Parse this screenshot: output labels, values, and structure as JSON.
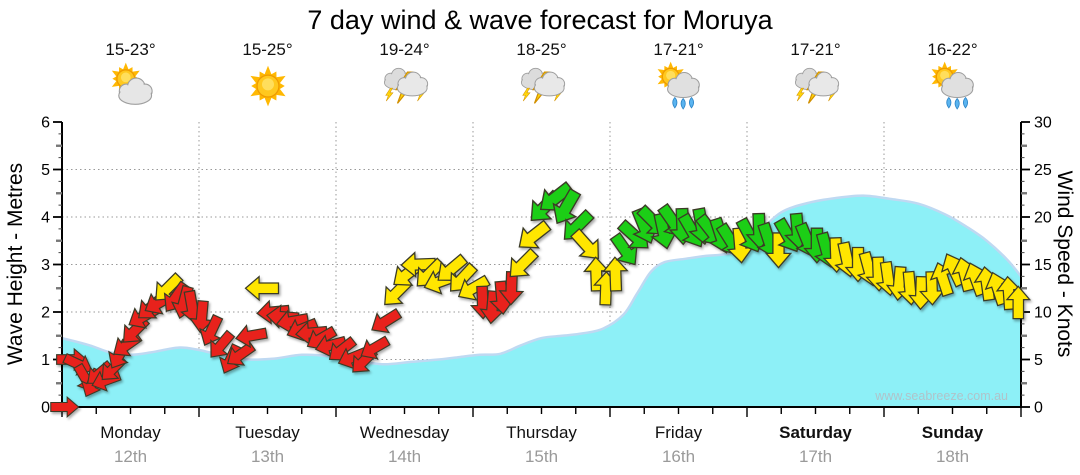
{
  "title": "7 day wind & wave forecast for Moruya",
  "watermark": "www.seabreeze.com.au",
  "forecast": [
    {
      "temp": "15-23°",
      "icon": "sun-cloud"
    },
    {
      "temp": "15-25°",
      "icon": "sun"
    },
    {
      "temp": "19-24°",
      "icon": "storm"
    },
    {
      "temp": "18-25°",
      "icon": "storm"
    },
    {
      "temp": "17-21°",
      "icon": "sun-shower"
    },
    {
      "temp": "17-21°",
      "icon": "storm"
    },
    {
      "temp": "16-22°",
      "icon": "sun-shower"
    }
  ],
  "chart_data": {
    "type": "area",
    "title": "7 day wind & wave forecast for Moruya",
    "grid": true,
    "left_axis": {
      "label": "Wave Height - Metres",
      "min": 0,
      "max": 6,
      "ticks": [
        0,
        1,
        2,
        3,
        4,
        5,
        6
      ]
    },
    "right_axis": {
      "label": "Wind Speed - Knots",
      "min": 0,
      "max": 30,
      "ticks": [
        0,
        5,
        10,
        15,
        20,
        25,
        30
      ]
    },
    "x_axis": {
      "days": [
        {
          "name": "Monday",
          "date": "12th",
          "bold": false
        },
        {
          "name": "Tuesday",
          "date": "13th",
          "bold": false
        },
        {
          "name": "Wednesday",
          "date": "14th",
          "bold": false
        },
        {
          "name": "Thursday",
          "date": "15th",
          "bold": false
        },
        {
          "name": "Friday",
          "date": "16th",
          "bold": false
        },
        {
          "name": "Saturday",
          "date": "17th",
          "bold": true
        },
        {
          "name": "Sunday",
          "date": "18th",
          "bold": true
        }
      ],
      "minor_tick_hours": 6
    },
    "colors": {
      "wave_fill": "#8DF0F7",
      "wave_edge": "#BFD9F2",
      "r": "#E8221A",
      "y": "#FFE600",
      "g": "#1FCE14",
      "arrow_outline": "#3A3A28",
      "grid": "#999999",
      "date_gray": "#9a9a9a",
      "watermark": "#AFC3CA"
    },
    "wave_height_m": {
      "series_name": "Wave Height (metres)",
      "points": [
        [
          0,
          1.45
        ],
        [
          0.2,
          1.3
        ],
        [
          0.35,
          1.15
        ],
        [
          0.5,
          1.1
        ],
        [
          0.65,
          1.15
        ],
        [
          0.85,
          1.25
        ],
        [
          1.0,
          1.2
        ],
        [
          1.15,
          1.1
        ],
        [
          1.35,
          1.0
        ],
        [
          1.55,
          1.02
        ],
        [
          1.75,
          1.1
        ],
        [
          1.95,
          1.07
        ],
        [
          2.15,
          0.97
        ],
        [
          2.35,
          0.9
        ],
        [
          2.55,
          0.95
        ],
        [
          2.75,
          1.0
        ],
        [
          2.9,
          1.05
        ],
        [
          3.05,
          1.1
        ],
        [
          3.2,
          1.12
        ],
        [
          3.35,
          1.3
        ],
        [
          3.5,
          1.45
        ],
        [
          3.65,
          1.5
        ],
        [
          3.8,
          1.55
        ],
        [
          3.95,
          1.65
        ],
        [
          4.1,
          1.95
        ],
        [
          4.2,
          2.4
        ],
        [
          4.3,
          2.85
        ],
        [
          4.4,
          3.05
        ],
        [
          4.55,
          3.12
        ],
        [
          4.7,
          3.18
        ],
        [
          4.85,
          3.22
        ],
        [
          5.0,
          3.35
        ],
        [
          5.1,
          3.7
        ],
        [
          5.25,
          4.1
        ],
        [
          5.45,
          4.3
        ],
        [
          5.65,
          4.4
        ],
        [
          5.85,
          4.45
        ],
        [
          6.05,
          4.38
        ],
        [
          6.25,
          4.28
        ],
        [
          6.45,
          4.05
        ],
        [
          6.6,
          3.8
        ],
        [
          6.75,
          3.5
        ],
        [
          6.9,
          3.1
        ],
        [
          7,
          2.75
        ]
      ]
    },
    "wind": {
      "series_name": "Wind Speed (knots) & Direction",
      "arrow_format": [
        "day_t",
        "knots",
        "rotation_deg_cw_from_east",
        "color_key"
      ],
      "arrows": [
        [
          0.02,
          0,
          0,
          "r"
        ],
        [
          0.07,
          5,
          0,
          "r"
        ],
        [
          0.12,
          4.5,
          25,
          "r"
        ],
        [
          0.17,
          3,
          60,
          "r"
        ],
        [
          0.22,
          2.5,
          115,
          "r"
        ],
        [
          0.27,
          3.5,
          140,
          "r"
        ],
        [
          0.32,
          2.8,
          160,
          "r"
        ],
        [
          0.37,
          4,
          135,
          "r"
        ],
        [
          0.42,
          5.5,
          120,
          "r"
        ],
        [
          0.47,
          6.5,
          145,
          "r"
        ],
        [
          0.53,
          8,
          135,
          "r"
        ],
        [
          0.59,
          9.5,
          150,
          "r"
        ],
        [
          0.65,
          10.5,
          140,
          "r"
        ],
        [
          0.71,
          11,
          150,
          "r"
        ],
        [
          0.77,
          12.5,
          135,
          "y"
        ],
        [
          0.83,
          11.5,
          125,
          "r"
        ],
        [
          0.89,
          11,
          105,
          "r"
        ],
        [
          0.95,
          10.5,
          80,
          "r"
        ],
        [
          1.02,
          9.5,
          95,
          "r"
        ],
        [
          1.09,
          8,
          115,
          "r"
        ],
        [
          1.16,
          6.5,
          130,
          "r"
        ],
        [
          1.23,
          5,
          115,
          "r"
        ],
        [
          1.3,
          5.5,
          145,
          "r"
        ],
        [
          1.38,
          7.5,
          170,
          "r"
        ],
        [
          1.46,
          12.5,
          180,
          "y"
        ],
        [
          1.54,
          10,
          175,
          "r"
        ],
        [
          1.61,
          9.5,
          185,
          "r"
        ],
        [
          1.68,
          9,
          170,
          "r"
        ],
        [
          1.75,
          8.2,
          158,
          "r"
        ],
        [
          1.82,
          7.8,
          175,
          "r"
        ],
        [
          1.89,
          7.2,
          150,
          "r"
        ],
        [
          1.96,
          6.5,
          165,
          "r"
        ],
        [
          2.04,
          6,
          142,
          "r"
        ],
        [
          2.12,
          5.2,
          158,
          "r"
        ],
        [
          2.2,
          4.8,
          135,
          "r"
        ],
        [
          2.28,
          6.2,
          150,
          "r"
        ],
        [
          2.36,
          9,
          148,
          "r"
        ],
        [
          2.44,
          12,
          135,
          "y"
        ],
        [
          2.52,
          14,
          142,
          "y"
        ],
        [
          2.6,
          15,
          178,
          "y"
        ],
        [
          2.68,
          14,
          135,
          "y"
        ],
        [
          2.76,
          13.2,
          160,
          "y"
        ],
        [
          2.84,
          14.5,
          140,
          "y"
        ],
        [
          2.92,
          13.5,
          133,
          "y"
        ],
        [
          3.0,
          12.5,
          150,
          "y"
        ],
        [
          3.07,
          11,
          88,
          "r"
        ],
        [
          3.14,
          10.5,
          95,
          "r"
        ],
        [
          3.21,
          11.5,
          85,
          "r"
        ],
        [
          3.28,
          12.5,
          92,
          "r"
        ],
        [
          3.36,
          15,
          135,
          "y"
        ],
        [
          3.44,
          18,
          142,
          "y"
        ],
        [
          3.52,
          21,
          135,
          "g"
        ],
        [
          3.6,
          22,
          142,
          "g"
        ],
        [
          3.68,
          21,
          120,
          "g"
        ],
        [
          3.76,
          19,
          135,
          "g"
        ],
        [
          3.83,
          17,
          48,
          "y"
        ],
        [
          3.9,
          14,
          268,
          "y"
        ],
        [
          3.97,
          12.5,
          272,
          "y"
        ],
        [
          4.04,
          14,
          268,
          "y"
        ],
        [
          4.11,
          16.5,
          55,
          "g"
        ],
        [
          4.18,
          18,
          42,
          "g"
        ],
        [
          4.25,
          19,
          68,
          "g"
        ],
        [
          4.32,
          19.5,
          45,
          "g"
        ],
        [
          4.39,
          18.5,
          78,
          "g"
        ],
        [
          4.46,
          19.5,
          55,
          "g"
        ],
        [
          4.53,
          19,
          88,
          "g"
        ],
        [
          4.6,
          18.5,
          60,
          "g"
        ],
        [
          4.67,
          19,
          80,
          "g"
        ],
        [
          4.74,
          18.5,
          52,
          "g"
        ],
        [
          4.81,
          18,
          72,
          "g"
        ],
        [
          4.88,
          17.5,
          58,
          "g"
        ],
        [
          4.95,
          17,
          85,
          "y"
        ],
        [
          5.02,
          18,
          62,
          "g"
        ],
        [
          5.09,
          18.5,
          88,
          "g"
        ],
        [
          5.16,
          17.5,
          72,
          "g"
        ],
        [
          5.23,
          16.5,
          90,
          "y"
        ],
        [
          5.3,
          18,
          60,
          "g"
        ],
        [
          5.37,
          18.5,
          85,
          "g"
        ],
        [
          5.44,
          17.5,
          68,
          "g"
        ],
        [
          5.51,
          17,
          90,
          "g"
        ],
        [
          5.58,
          16.5,
          75,
          "g"
        ],
        [
          5.65,
          16,
          88,
          "y"
        ],
        [
          5.73,
          15.5,
          78,
          "y"
        ],
        [
          5.81,
          15,
          90,
          "y"
        ],
        [
          5.89,
          14.5,
          75,
          "y"
        ],
        [
          5.96,
          14,
          88,
          "y"
        ],
        [
          6.03,
          13.5,
          82,
          "y"
        ],
        [
          6.11,
          13,
          95,
          "y"
        ],
        [
          6.19,
          12.5,
          85,
          "y"
        ],
        [
          6.27,
          12,
          92,
          "y"
        ],
        [
          6.35,
          12.5,
          88,
          "y"
        ],
        [
          6.43,
          13.5,
          252,
          "y"
        ],
        [
          6.51,
          14.5,
          245,
          "y"
        ],
        [
          6.59,
          14,
          256,
          "y"
        ],
        [
          6.67,
          13.5,
          250,
          "y"
        ],
        [
          6.75,
          13,
          262,
          "y"
        ],
        [
          6.83,
          12.5,
          252,
          "y"
        ],
        [
          6.91,
          12,
          266,
          "y"
        ],
        [
          6.98,
          11,
          270,
          "y"
        ]
      ]
    }
  }
}
